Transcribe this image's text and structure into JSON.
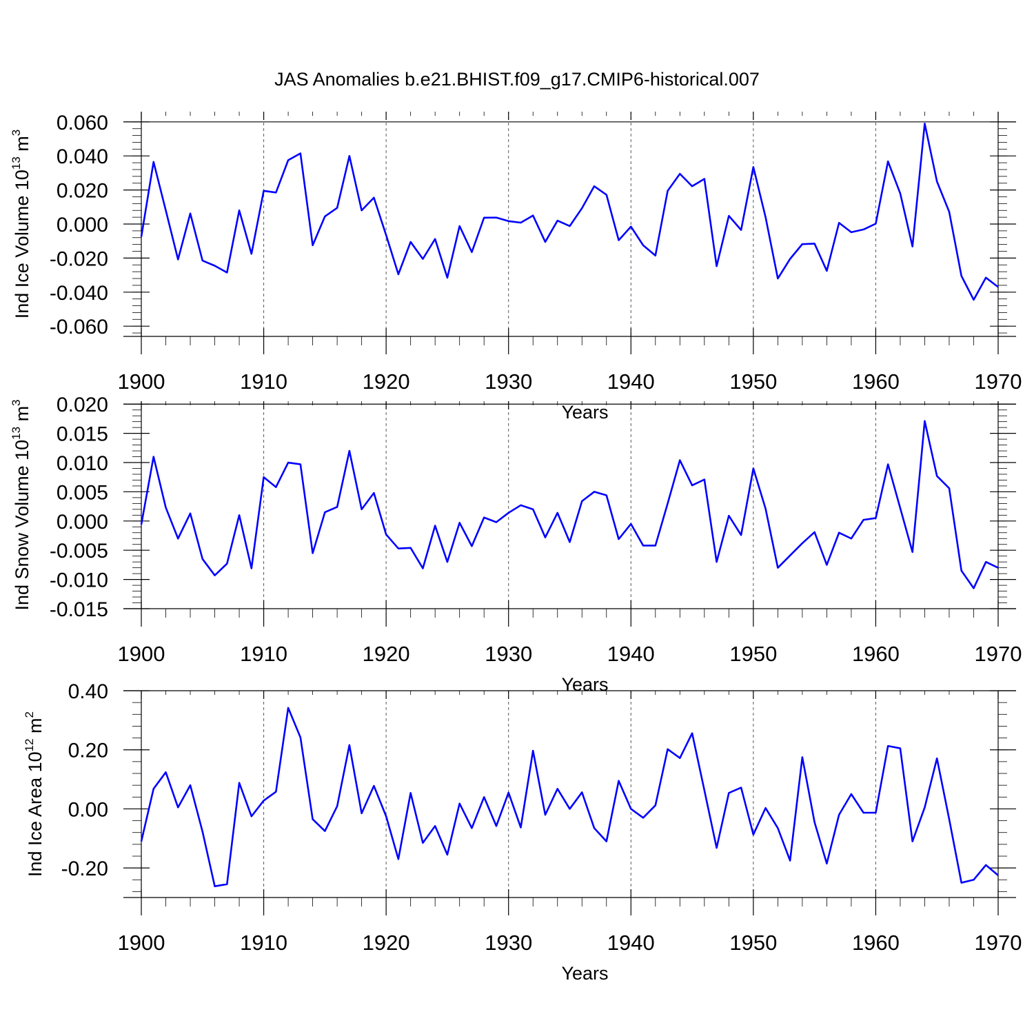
{
  "title": "JAS Anomalies b.e21.BHIST.f09_g17.CMIP6-historical.007",
  "line_color": "#0000ff",
  "chart_data": [
    {
      "type": "line",
      "ylabel_base": "Ind Ice Volume 10",
      "ylabel_exp": "13",
      "ylabel_unit": " m",
      "ylabel_unit_exp": "3",
      "xlabel": "Years",
      "xlim": [
        1900,
        1970
      ],
      "ylim": [
        -0.066,
        0.066
      ],
      "yticks": [
        -0.06,
        -0.04,
        -0.02,
        0.0,
        0.02,
        0.04,
        0.06
      ],
      "ytick_labels": [
        "-0.060",
        "-0.040",
        "-0.020",
        "0.000",
        "0.020",
        "0.040",
        "0.060"
      ],
      "xticks": [
        1900,
        1910,
        1920,
        1930,
        1940,
        1950,
        1960,
        1970
      ],
      "xtick_labels": [
        "1900",
        "1910",
        "1920",
        "1930",
        "1940",
        "1950",
        "1960",
        "1970"
      ],
      "x_start": 1900,
      "values": [
        -0.0075,
        0.0365,
        0.008,
        -0.0208,
        0.0062,
        -0.0215,
        -0.0245,
        -0.0285,
        0.008,
        -0.0175,
        0.0195,
        0.0185,
        0.0375,
        0.0415,
        -0.0125,
        0.0045,
        0.0095,
        0.04,
        0.008,
        0.0155,
        -0.0065,
        -0.0295,
        -0.0105,
        -0.0205,
        -0.0088,
        -0.0315,
        -0.0012,
        -0.0165,
        0.0037,
        0.0038,
        0.0017,
        0.0008,
        0.005,
        -0.0105,
        0.002,
        -0.0012,
        0.0093,
        0.0222,
        0.0172,
        -0.0095,
        -0.0015,
        -0.0125,
        -0.0185,
        0.0195,
        0.0295,
        0.0222,
        0.0265,
        -0.0248,
        0.0048,
        -0.0035,
        0.0335,
        0.004,
        -0.032,
        -0.0205,
        -0.0118,
        -0.0115,
        -0.0275,
        0.0007,
        -0.0048,
        -0.0032,
        0.0002,
        0.0368,
        0.018,
        -0.0132,
        0.059,
        0.025,
        0.0072,
        -0.0305,
        -0.0445,
        -0.0315,
        -0.037
      ]
    },
    {
      "type": "line",
      "ylabel_base": "Ind Snow Volume 10",
      "ylabel_exp": "13",
      "ylabel_unit": " m",
      "ylabel_unit_exp": "3",
      "xlabel": "Years",
      "xlim": [
        1900,
        1970
      ],
      "ylim": [
        -0.015,
        0.0205
      ],
      "yticks": [
        -0.015,
        -0.01,
        -0.005,
        0.0,
        0.005,
        0.01,
        0.015,
        0.02
      ],
      "ytick_labels": [
        "-0.015",
        "-0.010",
        "-0.005",
        "0.000",
        "0.005",
        "0.010",
        "0.015",
        "0.020"
      ],
      "xticks": [
        1900,
        1910,
        1920,
        1930,
        1940,
        1950,
        1960,
        1970
      ],
      "xtick_labels": [
        "1900",
        "1910",
        "1920",
        "1930",
        "1940",
        "1950",
        "1960",
        "1970"
      ],
      "x_start": 1900,
      "values": [
        -0.0006,
        0.011,
        0.0023,
        -0.003,
        0.0013,
        -0.0065,
        -0.0093,
        -0.0073,
        0.001,
        -0.0081,
        0.0075,
        0.0058,
        0.01,
        0.0097,
        -0.0055,
        0.0015,
        0.0024,
        0.012,
        0.002,
        0.0048,
        -0.0023,
        -0.0047,
        -0.0046,
        -0.0081,
        -0.0008,
        -0.007,
        -0.0003,
        -0.0043,
        0.0006,
        -0.0002,
        0.0014,
        0.0027,
        0.002,
        -0.0028,
        0.0014,
        -0.0036,
        0.0034,
        0.005,
        0.0044,
        -0.0031,
        -0.0005,
        -0.0042,
        -0.0042,
        0.003,
        0.0104,
        0.0061,
        0.0071,
        -0.007,
        0.0009,
        -0.0024,
        0.009,
        0.0021,
        -0.008,
        -0.0059,
        -0.0038,
        -0.0019,
        -0.0075,
        -0.002,
        -0.003,
        0.0002,
        0.0005,
        0.0097,
        0.0022,
        -0.0053,
        0.0171,
        0.0077,
        0.0056,
        -0.0085,
        -0.0115,
        -0.007,
        -0.008
      ]
    },
    {
      "type": "line",
      "ylabel_base": "Ind Ice Area 10",
      "ylabel_exp": "12",
      "ylabel_unit": " m",
      "ylabel_unit_exp": "2",
      "xlabel": "Years",
      "xlim": [
        1900,
        1970
      ],
      "ylim": [
        -0.3,
        0.4
      ],
      "yticks": [
        -0.2,
        0.0,
        0.2,
        0.4
      ],
      "ytick_labels": [
        "-0.20",
        "0.00",
        "0.20",
        "0.40"
      ],
      "xticks": [
        1900,
        1910,
        1920,
        1930,
        1940,
        1950,
        1960,
        1970
      ],
      "xtick_labels": [
        "1900",
        "1910",
        "1920",
        "1930",
        "1940",
        "1950",
        "1960",
        "1970"
      ],
      "x_start": 1900,
      "values": [
        -0.11,
        0.068,
        0.124,
        0.005,
        0.08,
        -0.077,
        -0.262,
        -0.255,
        0.088,
        -0.025,
        0.028,
        0.058,
        0.342,
        0.242,
        -0.035,
        -0.075,
        0.009,
        0.216,
        -0.015,
        0.078,
        -0.025,
        -0.17,
        0.054,
        -0.115,
        -0.058,
        -0.155,
        0.018,
        -0.065,
        0.04,
        -0.058,
        0.055,
        -0.063,
        0.197,
        -0.02,
        0.068,
        0.0,
        0.056,
        -0.065,
        -0.11,
        0.095,
        0.0,
        -0.03,
        0.012,
        0.202,
        0.172,
        0.256,
        0.063,
        -0.132,
        0.054,
        0.072,
        -0.087,
        0.003,
        -0.065,
        -0.175,
        0.175,
        -0.045,
        -0.185,
        -0.02,
        0.05,
        -0.013,
        -0.013,
        0.213,
        0.205,
        -0.11,
        0.005,
        0.171,
        -0.035,
        -0.25,
        -0.24,
        -0.19,
        -0.225
      ]
    }
  ]
}
